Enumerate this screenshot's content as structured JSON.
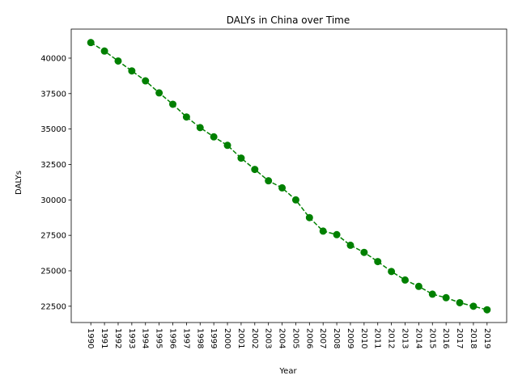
{
  "chart_data": {
    "type": "line",
    "title": "DALYs in China over Time",
    "xlabel": "Year",
    "ylabel": "DALYs",
    "categories": [
      "1990",
      "1991",
      "1992",
      "1993",
      "1994",
      "1995",
      "1996",
      "1997",
      "1998",
      "1999",
      "2000",
      "2001",
      "2002",
      "2003",
      "2004",
      "2005",
      "2006",
      "2007",
      "2008",
      "2009",
      "2010",
      "2011",
      "2012",
      "2013",
      "2014",
      "2015",
      "2016",
      "2017",
      "2018",
      "2019"
    ],
    "series": [
      {
        "values": [
          41100,
          40500,
          39800,
          39100,
          38400,
          37550,
          36750,
          35850,
          35100,
          34450,
          33850,
          32950,
          32150,
          31350,
          30850,
          30000,
          28750,
          27800,
          27550,
          26800,
          26300,
          25650,
          24950,
          24350,
          23900,
          23350,
          23100,
          22750,
          22500,
          22250
        ],
        "color": "#008000",
        "line_style": "dashed",
        "marker": "circle"
      }
    ],
    "yticks": [
      22500,
      25000,
      27500,
      30000,
      32500,
      35000,
      37500,
      40000
    ],
    "ylim": [
      21350,
      42050
    ],
    "grid": false,
    "legend": "none"
  }
}
